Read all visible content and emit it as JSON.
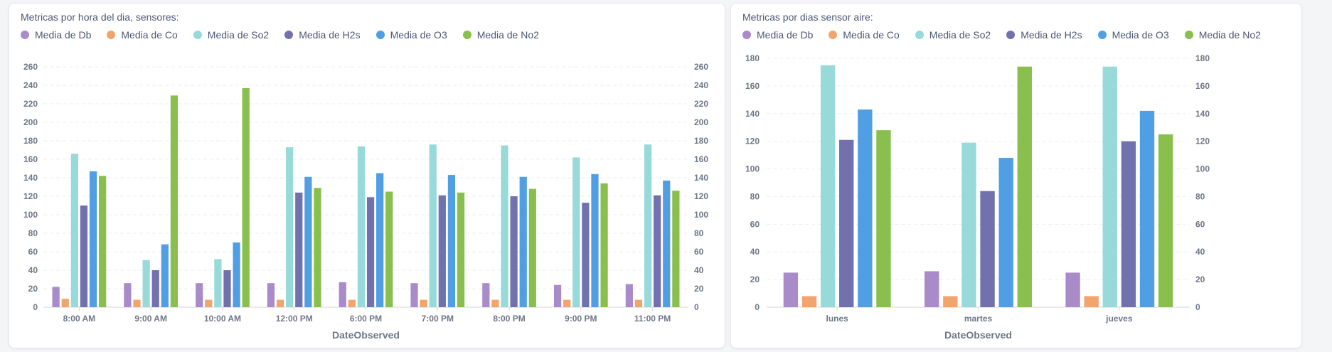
{
  "colors": {
    "Media de Db": "#a98bc9",
    "Media de Co": "#f2a46d",
    "Media de So2": "#98d9d9",
    "Media de H2s": "#7172ad",
    "Media de O3": "#509ee3",
    "Media de No2": "#88bf4d"
  },
  "chart_data": [
    {
      "type": "bar",
      "title": "Metricas por hora del dia, sensores:",
      "xlabel": "DateObserved",
      "ylabel": "",
      "ylim": [
        0,
        260
      ],
      "yticks": [
        0,
        20,
        40,
        60,
        80,
        100,
        120,
        140,
        160,
        180,
        200,
        220,
        240,
        260
      ],
      "grid": true,
      "dual_axis_labels": true,
      "legend_position": "top-left",
      "categories": [
        "8:00 AM",
        "9:00 AM",
        "10:00 AM",
        "12:00 PM",
        "6:00 PM",
        "7:00 PM",
        "8:00 PM",
        "9:00 PM",
        "11:00 PM"
      ],
      "series": [
        {
          "name": "Media de Db",
          "values": [
            22,
            26,
            26,
            26,
            27,
            26,
            26,
            24,
            25
          ]
        },
        {
          "name": "Media de Co",
          "values": [
            9,
            8,
            8,
            8,
            8,
            8,
            8,
            8,
            8
          ]
        },
        {
          "name": "Media de So2",
          "values": [
            166,
            51,
            52,
            173,
            174,
            176,
            175,
            162,
            176
          ]
        },
        {
          "name": "Media de H2s",
          "values": [
            110,
            40,
            40,
            124,
            119,
            121,
            120,
            113,
            121
          ]
        },
        {
          "name": "Media de O3",
          "values": [
            147,
            68,
            70,
            141,
            145,
            143,
            141,
            144,
            137
          ]
        },
        {
          "name": "Media de No2",
          "values": [
            142,
            229,
            237,
            129,
            125,
            124,
            128,
            134,
            126
          ]
        }
      ]
    },
    {
      "type": "bar",
      "title": "Metricas por dias sensor aire:",
      "xlabel": "DateObserved",
      "ylabel": "",
      "ylim": [
        0,
        180
      ],
      "yticks": [
        0,
        20,
        40,
        60,
        80,
        100,
        120,
        140,
        160,
        180
      ],
      "grid": true,
      "dual_axis_labels": true,
      "legend_position": "top-left",
      "categories": [
        "lunes",
        "martes",
        "jueves"
      ],
      "series": [
        {
          "name": "Media de Db",
          "values": [
            25,
            26,
            25
          ]
        },
        {
          "name": "Media de Co",
          "values": [
            8,
            8,
            8
          ]
        },
        {
          "name": "Media de So2",
          "values": [
            175,
            119,
            174
          ]
        },
        {
          "name": "Media de H2s",
          "values": [
            121,
            84,
            120
          ]
        },
        {
          "name": "Media de O3",
          "values": [
            143,
            108,
            142
          ]
        },
        {
          "name": "Media de No2",
          "values": [
            128,
            174,
            125
          ]
        }
      ]
    }
  ]
}
